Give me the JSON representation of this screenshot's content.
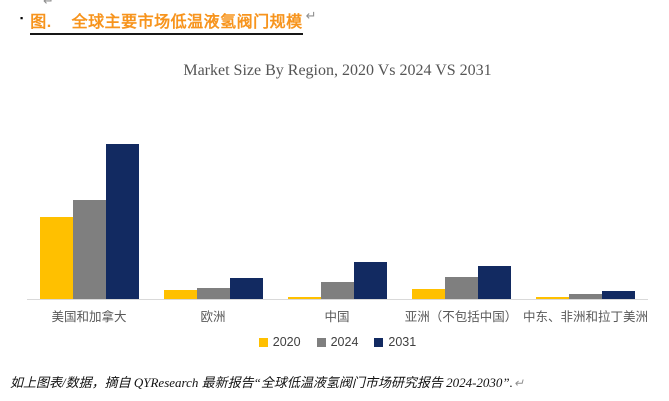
{
  "stray_return_mark": "↵",
  "heading": {
    "bullet": "▪",
    "prefix": "图.",
    "title": "全球主要市场低温液氢阀门规模",
    "return_mark": "↵",
    "accent_color": "#F7941D"
  },
  "chart_data": {
    "type": "bar",
    "title": "Market Size By Region, 2020 Vs 2024 VS 2031",
    "categories": [
      "美国和加拿大",
      "欧洲",
      "中国",
      "亚洲（不包括中国）",
      "中东、非洲和拉丁美洲"
    ],
    "series": [
      {
        "name": "2020",
        "color": "#FFC000",
        "values": [
          53,
          5.5,
          1.5,
          6.5,
          1.5
        ]
      },
      {
        "name": "2024",
        "color": "#7F7F7F",
        "values": [
          64,
          7,
          11,
          14,
          3.5
        ]
      },
      {
        "name": "2031",
        "color": "#122A61",
        "values": [
          100,
          13.5,
          24,
          21,
          5
        ]
      }
    ],
    "xlabel": "",
    "ylabel": "",
    "ylim": [
      0,
      110
    ],
    "grid": false,
    "legend_position": "bottom",
    "axis_line_color": "#D9D9D9",
    "label_color": "#595959"
  },
  "footer": {
    "text": "如上图表/数据，摘自 QYResearch 最新报告“全球低温液氢阀门市场研究报告 2024-2030”.",
    "return_mark": "↵"
  }
}
